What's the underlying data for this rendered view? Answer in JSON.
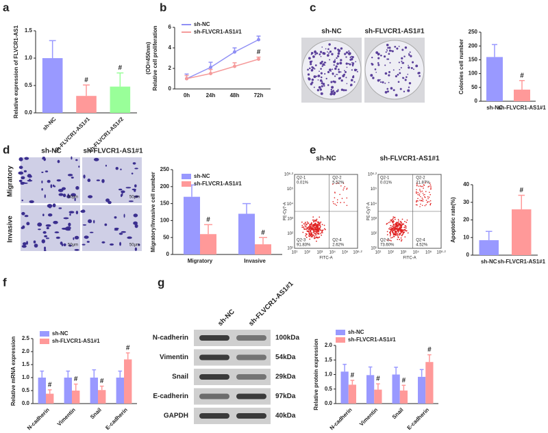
{
  "chart_data": [
    {
      "panel": "a",
      "type": "bar",
      "y_label": "Relative expression of FLVCR1-AS1",
      "categories": [
        "sh-NC",
        "sh-FLVCR1-AS1#1",
        "sh-FLVCR1-AS1#2"
      ],
      "values": [
        1.0,
        0.31,
        0.48
      ],
      "errors": [
        0.32,
        0.2,
        0.25
      ],
      "colors": [
        "#9999ff",
        "#ff9999",
        "#99ff99"
      ],
      "annotations": [
        null,
        "#",
        "#"
      ],
      "ylim": [
        0,
        1.5
      ],
      "yticks": [
        {
          "value": 0,
          "label": "0.0"
        },
        0.5,
        {
          "value": 1,
          "label": "1.0"
        },
        1.5
      ]
    },
    {
      "panel": "b",
      "type": "line",
      "y_label": [
        "Relative cell proliferation",
        "(OD=450nm)"
      ],
      "categories": [
        "0h",
        "24h",
        "48h",
        "72h"
      ],
      "series": [
        {
          "name": "sh-NC",
          "color": "#8f8ff5",
          "values": [
            1.0,
            2.1,
            3.6,
            4.8
          ],
          "errors": [
            0.45,
            0.5,
            0.4,
            0.35
          ]
        },
        {
          "name": "sh-FLVCR1-AS1#1",
          "color": "#f59a9a",
          "values": [
            1.0,
            1.5,
            2.2,
            2.9
          ],
          "errors": [
            0.3,
            0.4,
            0.35,
            0.2
          ],
          "annotations": [
            null,
            null,
            null,
            "#"
          ]
        }
      ],
      "ylim": [
        0,
        6
      ],
      "yticks": [
        0,
        2,
        4,
        6
      ]
    },
    {
      "panel": "c",
      "type": "bar",
      "y_label": "Colonies cell number",
      "categories": [
        "sh-NC",
        "sh-FLVCR1-AS1#1"
      ],
      "values": [
        160,
        42
      ],
      "errors": [
        45,
        33
      ],
      "colors": [
        "#9999ff",
        "#ff9999"
      ],
      "annotations": [
        null,
        "#"
      ],
      "ylim": [
        0,
        250
      ],
      "yticks": [
        0,
        50,
        100,
        150,
        200,
        250
      ],
      "images": [
        "sh-NC",
        "sh-FLVCR1-AS1#1"
      ]
    },
    {
      "panel": "d",
      "type": "bar",
      "y_label": "Migratory/Invasive cell number",
      "categories": [
        "Migratory",
        "Invasive"
      ],
      "series": [
        {
          "name": "sh-NC",
          "color": "#9999ff",
          "values": [
            170,
            120
          ],
          "errors": [
            35,
            30
          ]
        },
        {
          "name": "sh-FLVCR1-AS1#1",
          "color": "#ff9999",
          "values": [
            60,
            30
          ],
          "errors": [
            28,
            20
          ],
          "annotations": [
            "#",
            "#"
          ]
        }
      ],
      "ylim": [
        0,
        250
      ],
      "yticks": [
        0,
        50,
        100,
        150,
        200,
        250
      ],
      "images": {
        "columns": [
          "sh-NC",
          "sh-FLVCR1-AS1#1"
        ],
        "rows": [
          "Migratory",
          "Invasive"
        ],
        "scale_bar": "50μm"
      }
    },
    {
      "panel": "e",
      "type": "bar",
      "y_label": "Apoptotic rate(%)",
      "categories": [
        "sh-NC",
        "sh-FLVCR1-AS1#1"
      ],
      "values": [
        8.5,
        26
      ],
      "errors": [
        5,
        8
      ],
      "colors": [
        "#9999ff",
        "#ff9999"
      ],
      "annotations": [
        null,
        "#"
      ],
      "ylim": [
        0,
        40
      ],
      "yticks": [
        0,
        10,
        20,
        30,
        40
      ],
      "flow": {
        "columns": [
          "sh-NC",
          "sh-FLVCR1-AS1#1"
        ],
        "x_label": "FITC-A",
        "y_label": "PE-Cy7-A",
        "ticks": [
          "10¹",
          "10²",
          "10³",
          "10⁴",
          "10⁵",
          "10⁶·²"
        ],
        "quadrants": [
          [
            [
              "Q2-1",
              "0.01%"
            ],
            [
              "Q2-2",
              "5.52%"
            ],
            [
              "Q2-3",
              "91.83%"
            ],
            [
              "Q2-4",
              "2.62%"
            ]
          ],
          [
            [
              "Q2-1",
              "0.01%"
            ],
            [
              "Q2-2",
              "21.87%"
            ],
            [
              "Q2-3",
              "73.60%"
            ],
            [
              "Q2-4",
              "4.52%"
            ]
          ]
        ]
      }
    },
    {
      "panel": "f",
      "type": "bar",
      "y_label": "Relative mRNA expression",
      "categories": [
        "N-cadherin",
        "Vimentin",
        "Snail",
        "E-cadherin"
      ],
      "series": [
        {
          "name": "sh-NC",
          "color": "#9999ff",
          "values": [
            1.0,
            1.0,
            1.0,
            1.0
          ],
          "errors": [
            0.25,
            0.25,
            0.3,
            0.25
          ]
        },
        {
          "name": "sh-FLVCR1-AS1#1",
          "color": "#ff9999",
          "values": [
            0.38,
            0.5,
            0.52,
            1.7
          ],
          "errors": [
            0.15,
            0.25,
            0.15,
            0.25
          ],
          "annotations": [
            "#",
            "#",
            "#",
            "#"
          ]
        }
      ],
      "ylim": [
        0,
        2.5
      ],
      "yticks": [
        {
          "value": 0,
          "label": "0.0"
        },
        0.5,
        {
          "value": 1,
          "label": "1.0"
        },
        1.5,
        {
          "value": 2,
          "label": "2.0"
        },
        2.5
      ]
    },
    {
      "panel": "g",
      "type": "bar",
      "y_label": "Relative protein expression",
      "categories": [
        "N-cadherin",
        "Vimentin",
        "Snail",
        "E-cadherin"
      ],
      "series": [
        {
          "name": "sh-NC",
          "color": "#9999ff",
          "values": [
            1.1,
            0.98,
            1.0,
            0.92
          ],
          "errors": [
            0.25,
            0.28,
            0.25,
            0.25
          ]
        },
        {
          "name": "sh-FLVCR1-AS1#1",
          "color": "#ff9999",
          "values": [
            0.65,
            0.48,
            0.45,
            1.43
          ],
          "errors": [
            0.15,
            0.2,
            0.18,
            0.25
          ],
          "annotations": [
            "#",
            "#",
            "#",
            "#"
          ]
        }
      ],
      "ylim": [
        0,
        2.0
      ],
      "yticks": [
        {
          "value": 0,
          "label": "0.0"
        },
        0.5,
        {
          "value": 1,
          "label": "1.0"
        },
        1.5,
        {
          "value": 2,
          "label": "2.0"
        }
      ],
      "blot": {
        "columns": [
          "sh-NC",
          "sh-FLVCR1-AS1#1"
        ],
        "rows": [
          [
            "N-cadherin",
            "100kDa"
          ],
          [
            "Vimentin",
            "54kDa"
          ],
          [
            "Snail",
            "29kDa"
          ],
          [
            "E-cadherin",
            "97kDa"
          ],
          [
            "GAPDH",
            "40kDa"
          ]
        ]
      }
    }
  ]
}
